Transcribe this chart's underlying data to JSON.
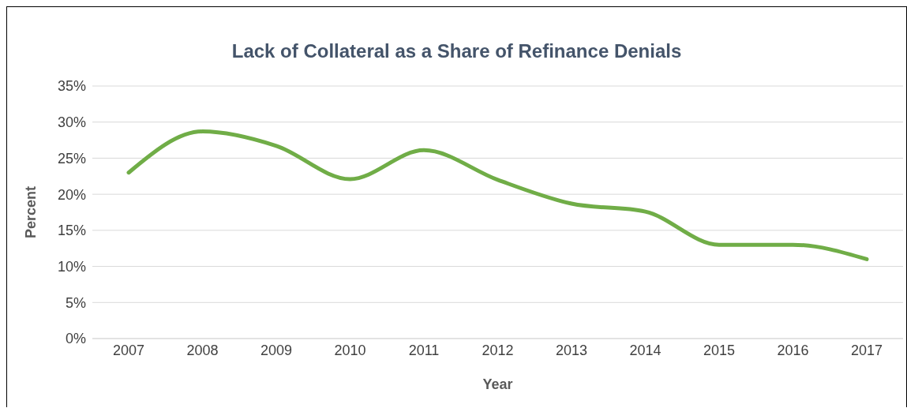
{
  "chart_data": {
    "type": "line",
    "title": "Lack of Collateral as a Share of Refinance Denials",
    "xlabel": "Year",
    "ylabel": "Percent",
    "categories": [
      "2007",
      "2008",
      "2009",
      "2010",
      "2011",
      "2012",
      "2013",
      "2014",
      "2015",
      "2016",
      "2017"
    ],
    "series": [
      {
        "color": "#70ad47",
        "values": [
          23,
          28.7,
          26.7,
          22.1,
          26.1,
          22,
          18.7,
          17.6,
          13,
          13,
          11
        ]
      }
    ],
    "ylim": [
      0,
      35
    ],
    "yticks": [
      {
        "value": 0,
        "label": "0%"
      },
      {
        "value": 5,
        "label": "5%"
      },
      {
        "value": 10,
        "label": "10%"
      },
      {
        "value": 15,
        "label": "15%"
      },
      {
        "value": 20,
        "label": "20%"
      },
      {
        "value": 25,
        "label": "25%"
      },
      {
        "value": 30,
        "label": "30%"
      },
      {
        "value": 35,
        "label": "35%"
      }
    ],
    "grid": "y",
    "legend": false,
    "marker": "none",
    "line_style": "solid"
  }
}
